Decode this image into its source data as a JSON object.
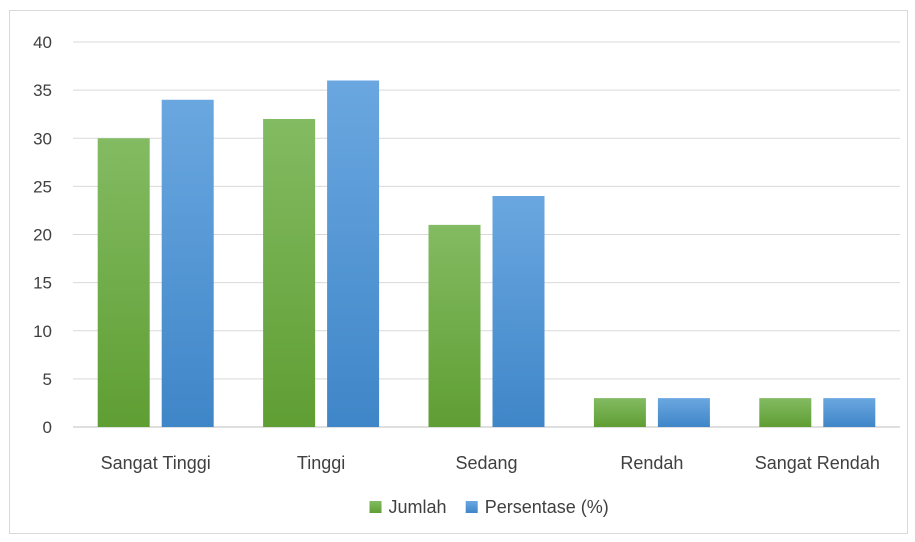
{
  "chart_data": {
    "type": "bar",
    "title": "",
    "xlabel": "",
    "ylabel": "",
    "categories": [
      "Sangat Tinggi",
      "Tinggi",
      "Sedang",
      "Rendah",
      "Sangat Rendah"
    ],
    "series": [
      {
        "name": "Jumlah",
        "values": [
          30,
          32,
          21,
          3,
          3
        ],
        "color": "#70ad47"
      },
      {
        "name": "Persentase (%)",
        "values": [
          34,
          36,
          24,
          3,
          3
        ],
        "color": "#5b9bd5"
      }
    ],
    "ylim": [
      0,
      40
    ],
    "yticks": [
      0,
      5,
      10,
      15,
      20,
      25,
      30,
      35,
      40
    ],
    "grid": true,
    "legend_position": "bottom"
  }
}
